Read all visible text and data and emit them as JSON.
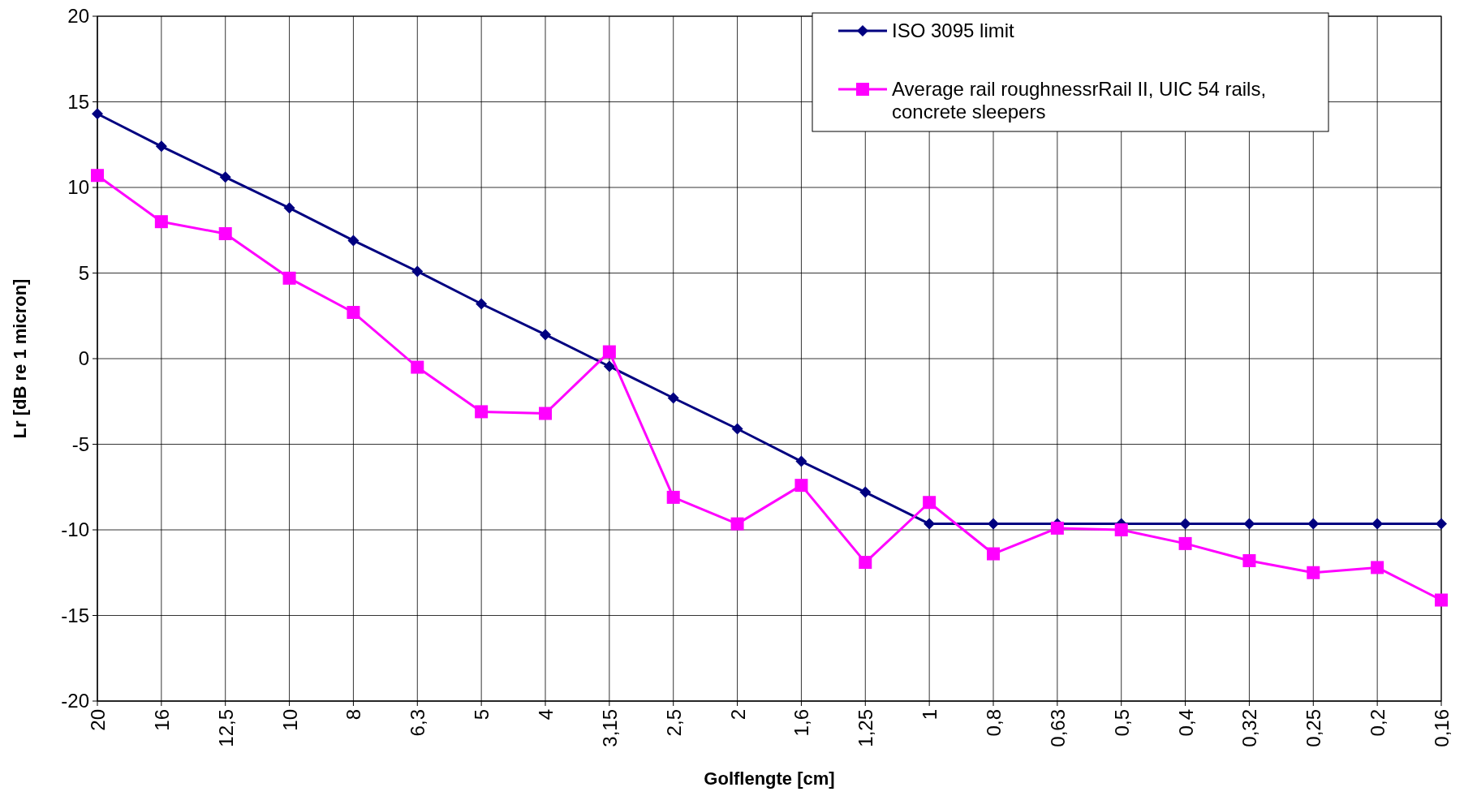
{
  "chart_data": {
    "type": "line",
    "xlabel": "Golflengte [cm]",
    "ylabel": "Lr [dB re 1 micron]",
    "categories": [
      "20",
      "16",
      "12,5",
      "10",
      "8",
      "6,3",
      "5",
      "4",
      "3,15",
      "2,5",
      "2",
      "1,6",
      "1,25",
      "1",
      "0,8",
      "0,63",
      "0,5",
      "0,4",
      "0,32",
      "0,25",
      "0,2",
      "0,16"
    ],
    "series": [
      {
        "name": "ISO 3095 limit",
        "color": "#000080",
        "marker": "diamond",
        "values": [
          14.3,
          12.4,
          10.6,
          8.8,
          6.9,
          5.1,
          3.2,
          1.4,
          -0.45,
          -2.3,
          -4.1,
          -6.0,
          -7.8,
          -9.65,
          -9.65,
          -9.65,
          -9.65,
          -9.65,
          -9.65,
          -9.65,
          -9.65,
          -9.65
        ]
      },
      {
        "name": "Average rail roughnessrRail II, UIC 54 rails, concrete sleepers",
        "color": "#ff00ff",
        "marker": "square",
        "values": [
          10.7,
          8.0,
          7.3,
          4.7,
          2.7,
          -0.5,
          -3.1,
          -3.2,
          0.4,
          -8.1,
          -9.65,
          -7.4,
          -11.9,
          -8.4,
          -11.4,
          -9.9,
          -10.0,
          -10.8,
          -11.8,
          -12.5,
          -12.2,
          -14.1
        ]
      }
    ],
    "ylim": [
      -20,
      20
    ],
    "yticks": [
      -20,
      -15,
      -10,
      -5,
      0,
      5,
      10,
      15,
      20
    ],
    "grid": true,
    "legend": "top right"
  }
}
